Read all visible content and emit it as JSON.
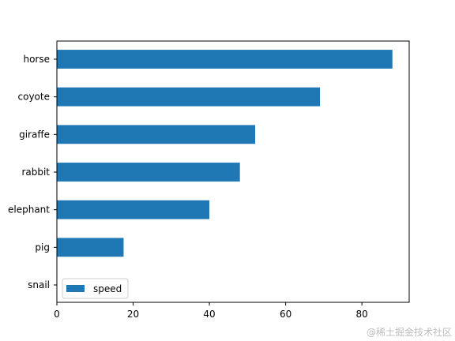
{
  "chart_data": {
    "type": "bar",
    "orientation": "horizontal",
    "categories": [
      "snail",
      "pig",
      "elephant",
      "rabbit",
      "giraffe",
      "coyote",
      "horse"
    ],
    "series": [
      {
        "name": "speed",
        "values": [
          0.1,
          17.5,
          40,
          48,
          52,
          69,
          88
        ],
        "color": "#1f77b4"
      }
    ],
    "xlim": [
      0,
      92.4
    ],
    "xticks": [
      0,
      20,
      40,
      60,
      80
    ],
    "legend_position": "lower-left",
    "grid": false
  },
  "watermark": "@稀土掘金技术社区"
}
